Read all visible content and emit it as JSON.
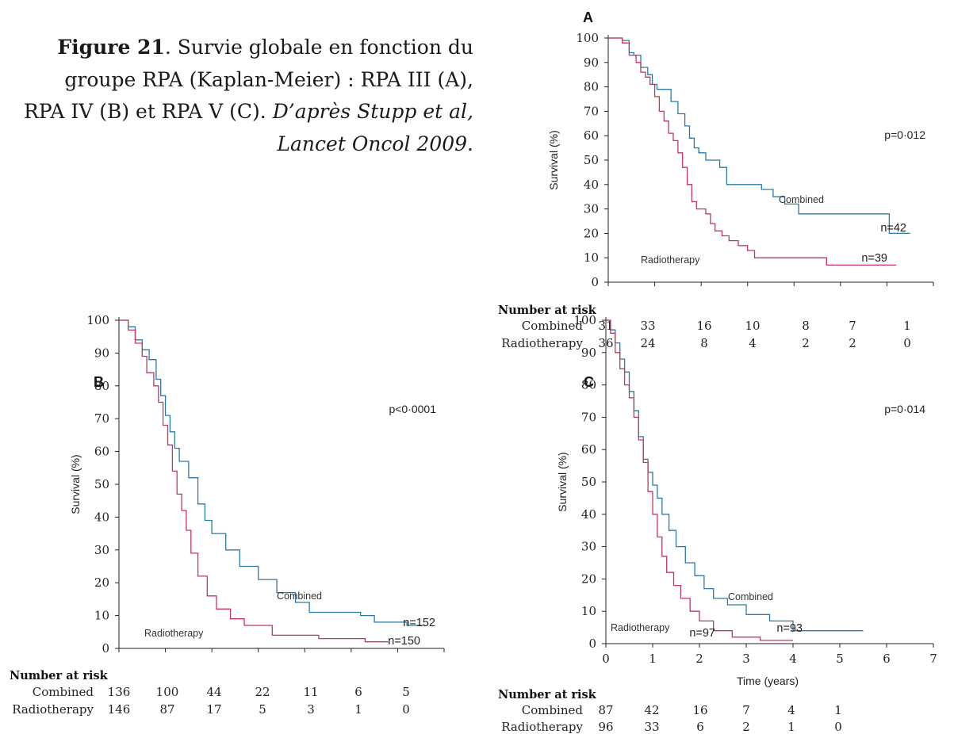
{
  "caption": {
    "fig_label": "Figure 21",
    "lines": [
      "Survie globale en fonction du",
      "groupe RPA (Kaplan-Meier) : RPA III (A),",
      "RPA IV (B) et RPA V (C).",
      "D’après Stupp et al,",
      "Lancet Oncol 2009"
    ]
  },
  "colors": {
    "combined": "#2b7aa6",
    "radiotherapy": "#c4375c"
  },
  "chart_data": [
    {
      "panel": "A",
      "type": "line",
      "ylabel": "Survival (%)",
      "xlabel": "",
      "yticks": [
        0,
        10,
        20,
        30,
        40,
        50,
        60,
        70,
        80,
        90,
        100
      ],
      "xlim": [
        0,
        7
      ],
      "ylim": [
        0,
        100
      ],
      "pvalue": "p=0·012",
      "series": [
        {
          "name": "Combined",
          "n_label": "n=42",
          "points": [
            [
              0,
              100
            ],
            [
              0.3,
              99
            ],
            [
              0.45,
              94
            ],
            [
              0.55,
              93
            ],
            [
              0.7,
              88
            ],
            [
              0.85,
              85
            ],
            [
              0.95,
              81
            ],
            [
              1.05,
              79
            ],
            [
              1.3,
              79
            ],
            [
              1.35,
              74
            ],
            [
              1.5,
              69
            ],
            [
              1.65,
              64
            ],
            [
              1.75,
              59
            ],
            [
              1.85,
              55
            ],
            [
              1.95,
              53
            ],
            [
              2.1,
              50
            ],
            [
              2.4,
              47
            ],
            [
              2.55,
              40
            ],
            [
              3.3,
              38
            ],
            [
              3.55,
              35
            ],
            [
              3.8,
              32
            ],
            [
              4.1,
              28
            ],
            [
              5.9,
              28
            ],
            [
              6.05,
              20
            ],
            [
              6.5,
              20
            ]
          ]
        },
        {
          "name": "Radiotherapy",
          "n_label": "n=39",
          "points": [
            [
              0,
              100
            ],
            [
              0.3,
              98
            ],
            [
              0.45,
              93
            ],
            [
              0.6,
              90
            ],
            [
              0.7,
              86
            ],
            [
              0.8,
              84
            ],
            [
              0.9,
              81
            ],
            [
              1.0,
              76
            ],
            [
              1.1,
              70
            ],
            [
              1.2,
              66
            ],
            [
              1.3,
              61
            ],
            [
              1.4,
              58
            ],
            [
              1.5,
              53
            ],
            [
              1.6,
              47
            ],
            [
              1.7,
              40
            ],
            [
              1.8,
              33
            ],
            [
              1.9,
              30
            ],
            [
              2.1,
              28
            ],
            [
              2.2,
              24
            ],
            [
              2.3,
              21
            ],
            [
              2.45,
              19
            ],
            [
              2.6,
              17
            ],
            [
              2.8,
              15
            ],
            [
              3.0,
              13
            ],
            [
              3.15,
              10
            ],
            [
              4.6,
              10
            ],
            [
              4.7,
              7
            ],
            [
              6.2,
              7
            ]
          ]
        }
      ],
      "risk": {
        "combined": [
          "31",
          "33",
          "16",
          "10",
          "8",
          "7",
          "1"
        ],
        "radiotherapy": [
          "36",
          "24",
          "8",
          "4",
          "2",
          "2",
          "0"
        ]
      }
    },
    {
      "panel": "B",
      "type": "line",
      "ylabel": "Survival (%)",
      "xlabel": "",
      "yticks": [
        0,
        10,
        20,
        30,
        40,
        50,
        60,
        70,
        80,
        90,
        100
      ],
      "xlim": [
        0,
        7
      ],
      "ylim": [
        0,
        100
      ],
      "pvalue": "p<0·0001",
      "series": [
        {
          "name": "Combined",
          "n_label": "n=152",
          "points": [
            [
              0,
              100
            ],
            [
              0.2,
              98
            ],
            [
              0.35,
              94
            ],
            [
              0.5,
              91
            ],
            [
              0.65,
              88
            ],
            [
              0.8,
              82
            ],
            [
              0.9,
              77
            ],
            [
              1.0,
              71
            ],
            [
              1.1,
              66
            ],
            [
              1.2,
              61
            ],
            [
              1.3,
              57
            ],
            [
              1.5,
              52
            ],
            [
              1.7,
              44
            ],
            [
              1.85,
              39
            ],
            [
              2.0,
              35
            ],
            [
              2.3,
              30
            ],
            [
              2.6,
              25
            ],
            [
              3.0,
              21
            ],
            [
              3.4,
              17
            ],
            [
              3.8,
              14
            ],
            [
              4.1,
              11
            ],
            [
              5.2,
              10
            ],
            [
              5.5,
              8
            ],
            [
              6.2,
              7
            ],
            [
              6.6,
              7
            ]
          ]
        },
        {
          "name": "Radiotherapy",
          "n_label": "n=150",
          "points": [
            [
              0,
              100
            ],
            [
              0.2,
              97
            ],
            [
              0.35,
              93
            ],
            [
              0.5,
              89
            ],
            [
              0.6,
              84
            ],
            [
              0.75,
              80
            ],
            [
              0.85,
              75
            ],
            [
              0.95,
              68
            ],
            [
              1.05,
              62
            ],
            [
              1.15,
              54
            ],
            [
              1.25,
              47
            ],
            [
              1.35,
              42
            ],
            [
              1.45,
              36
            ],
            [
              1.55,
              29
            ],
            [
              1.7,
              22
            ],
            [
              1.9,
              16
            ],
            [
              2.1,
              12
            ],
            [
              2.4,
              9
            ],
            [
              2.7,
              7
            ],
            [
              3.3,
              4
            ],
            [
              4.3,
              3
            ],
            [
              5.3,
              2
            ],
            [
              5.8,
              2
            ]
          ]
        }
      ],
      "risk": {
        "combined": [
          "136",
          "100",
          "44",
          "22",
          "11",
          "6",
          "5"
        ],
        "radiotherapy": [
          "146",
          "87",
          "17",
          "5",
          "3",
          "1",
          "0"
        ]
      }
    },
    {
      "panel": "C",
      "type": "line",
      "ylabel": "Survival (%)",
      "xlabel": "Time (years)",
      "yticks": [
        0,
        10,
        20,
        30,
        40,
        50,
        60,
        70,
        80,
        90,
        100
      ],
      "xticks": [
        0,
        1,
        2,
        3,
        4,
        5,
        6,
        7
      ],
      "xlim": [
        0,
        7
      ],
      "ylim": [
        0,
        100
      ],
      "pvalue": "p=0·014",
      "series": [
        {
          "name": "Combined",
          "n_label": "n=93",
          "points": [
            [
              0,
              100
            ],
            [
              0.1,
              97
            ],
            [
              0.2,
              93
            ],
            [
              0.3,
              88
            ],
            [
              0.4,
              84
            ],
            [
              0.5,
              78
            ],
            [
              0.6,
              72
            ],
            [
              0.7,
              64
            ],
            [
              0.8,
              57
            ],
            [
              0.9,
              53
            ],
            [
              1.0,
              49
            ],
            [
              1.1,
              45
            ],
            [
              1.2,
              40
            ],
            [
              1.35,
              35
            ],
            [
              1.5,
              30
            ],
            [
              1.7,
              25
            ],
            [
              1.9,
              21
            ],
            [
              2.1,
              17
            ],
            [
              2.3,
              14
            ],
            [
              2.6,
              12
            ],
            [
              3.0,
              9
            ],
            [
              3.5,
              7
            ],
            [
              4.0,
              4
            ],
            [
              5.0,
              4
            ],
            [
              5.5,
              4
            ]
          ]
        },
        {
          "name": "Radiotherapy",
          "n_label": "n=97",
          "points": [
            [
              0,
              100
            ],
            [
              0.1,
              96
            ],
            [
              0.2,
              90
            ],
            [
              0.3,
              85
            ],
            [
              0.4,
              80
            ],
            [
              0.5,
              76
            ],
            [
              0.6,
              70
            ],
            [
              0.7,
              63
            ],
            [
              0.8,
              56
            ],
            [
              0.9,
              47
            ],
            [
              1.0,
              40
            ],
            [
              1.1,
              33
            ],
            [
              1.2,
              27
            ],
            [
              1.3,
              22
            ],
            [
              1.45,
              18
            ],
            [
              1.6,
              14
            ],
            [
              1.8,
              10
            ],
            [
              2.0,
              7
            ],
            [
              2.3,
              4
            ],
            [
              2.7,
              2
            ],
            [
              3.3,
              1
            ],
            [
              4.0,
              1
            ]
          ]
        }
      ],
      "risk": {
        "combined": [
          "87",
          "42",
          "16",
          "7",
          "4",
          "1"
        ],
        "radiotherapy": [
          "96",
          "33",
          "6",
          "2",
          "1",
          "0"
        ]
      }
    }
  ],
  "risk_labels": {
    "title": "Number at risk",
    "combined": "Combined",
    "radiotherapy": "Radiotherapy"
  }
}
